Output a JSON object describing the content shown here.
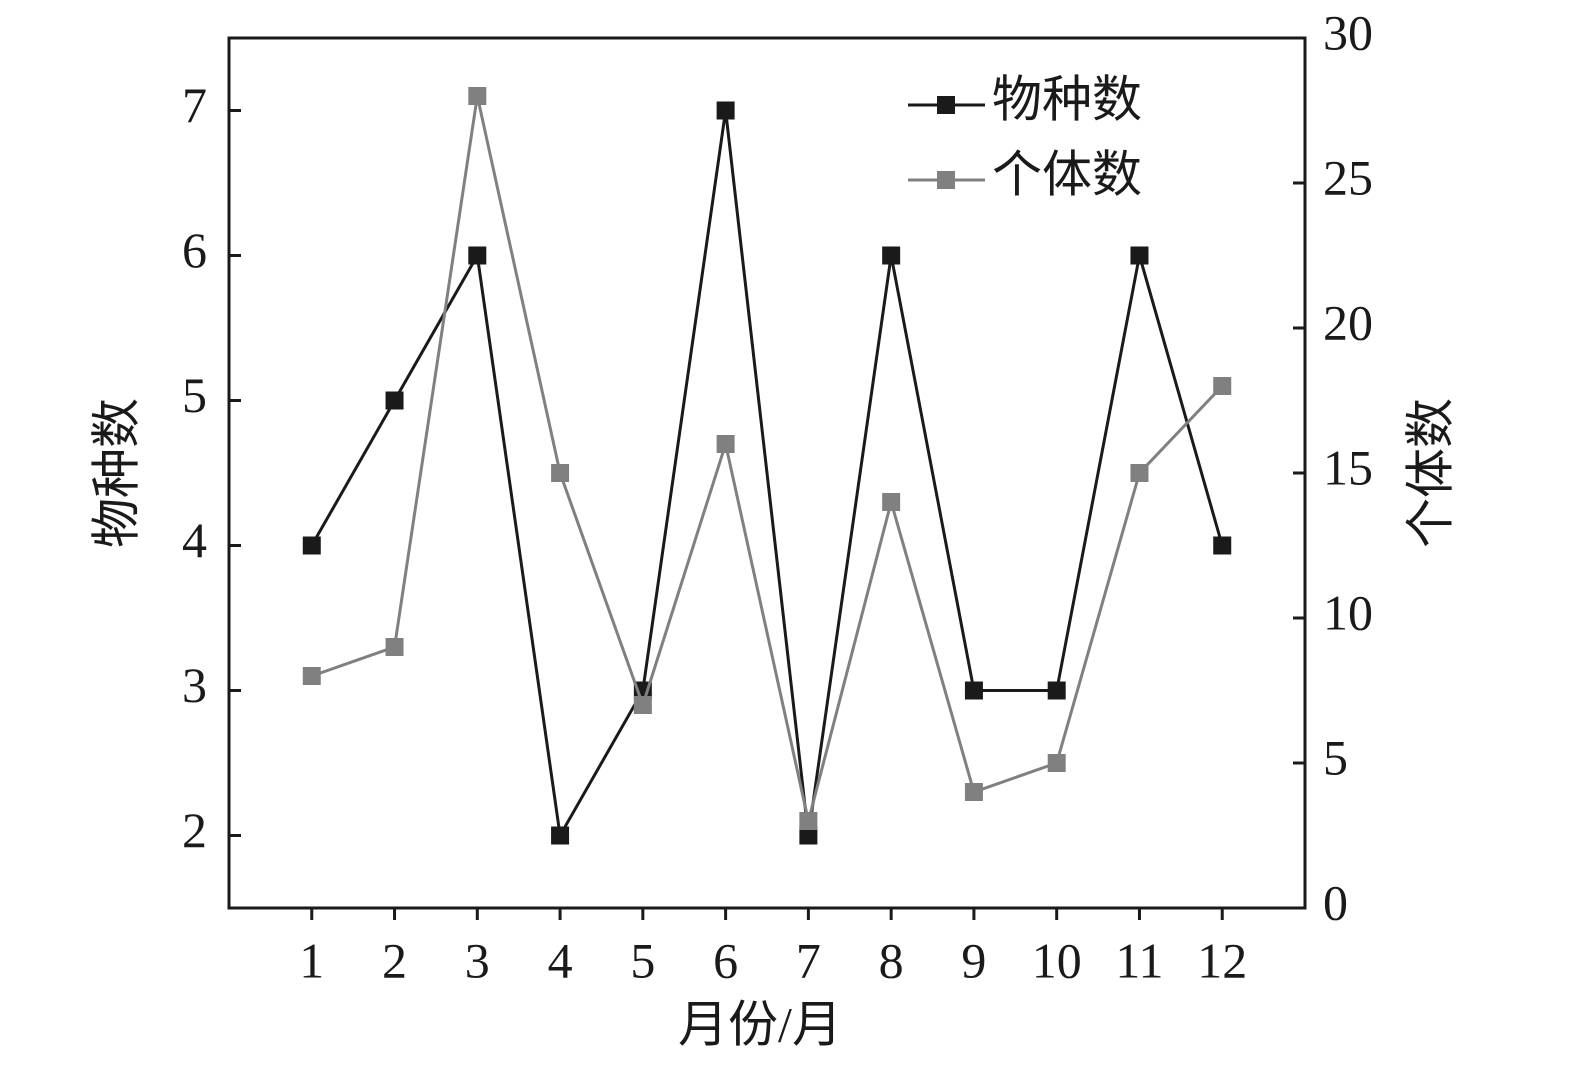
{
  "chart_data": {
    "type": "line",
    "x_label": "月份/月",
    "y_label": "物种数",
    "y2_label": "个体数",
    "x": [
      1,
      2,
      3,
      4,
      5,
      6,
      7,
      8,
      9,
      10,
      11,
      12
    ],
    "xlim": [
      0,
      13
    ],
    "xticks": [
      1,
      2,
      3,
      4,
      5,
      6,
      7,
      8,
      9,
      10,
      11,
      12
    ],
    "ylim": [
      1.5,
      7.5
    ],
    "yticks": [
      2,
      3,
      4,
      5,
      6,
      7
    ],
    "y2lim": [
      0,
      30
    ],
    "y2ticks": [
      0,
      5,
      10,
      15,
      20,
      25,
      30
    ],
    "legend": "upper right",
    "series": [
      {
        "name": "物种数",
        "color": "#1a1a1a",
        "values": [
          4,
          5,
          6,
          2,
          3,
          7,
          2,
          6,
          3,
          3,
          6,
          4
        ]
      },
      {
        "name": "个体数",
        "color": "#808080",
        "axis": "y2",
        "values": [
          8,
          9,
          28,
          15,
          7,
          16,
          3,
          14,
          4,
          5,
          15,
          18
        ]
      }
    ]
  }
}
